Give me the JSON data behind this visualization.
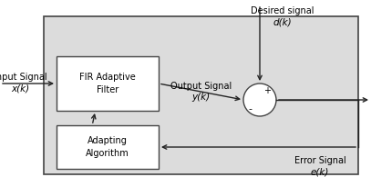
{
  "fig_width": 4.07,
  "fig_height": 2.06,
  "dpi": 100,
  "bg_color": "#dcdcdc",
  "box_color": "white",
  "box_edge_color": "#444444",
  "arrow_color": "#222222",
  "text_input_signal": "Input Signal",
  "text_input_x": "x(k)",
  "text_output_signal": "Output Signal",
  "text_output_y": "y(k)",
  "text_desired": "Desired signal",
  "text_desired_d": "d(k)",
  "text_error": "Error Signal",
  "text_error_e": "e(k)",
  "text_fir": "FIR Adaptive\nFilter",
  "text_adapt": "Adapting\nAlgorithm",
  "font_size_main": 7.0,
  "font_size_italic": 7.5
}
